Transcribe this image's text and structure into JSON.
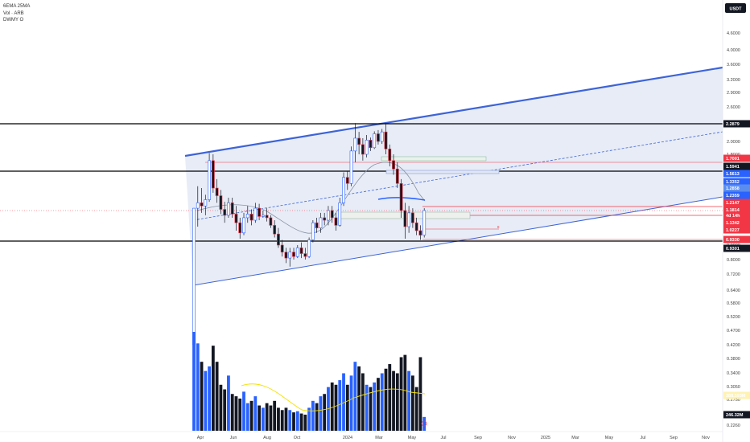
{
  "legend": {
    "line1": "6EMA 25MA",
    "line2": "Vol · ARB",
    "line3": "DWMY O"
  },
  "currency_button": "USDT",
  "price_axis": {
    "ticks": [
      "4.6000",
      "4.0000",
      "3.6000",
      "3.2000",
      "2.9000",
      "2.6000",
      "2.0000",
      "1.8000",
      "1.0200",
      "0.9000",
      "0.8000",
      "0.7200",
      "0.6400",
      "0.5800",
      "0.5200",
      "0.4700",
      "0.4200",
      "0.3800",
      "0.3400",
      "0.3050",
      "0.2750",
      "0.2260"
    ]
  },
  "price_tags": [
    {
      "label": "2.2879",
      "color": "#131722"
    },
    {
      "label": "1.7001",
      "color": "#f23645"
    },
    {
      "label": "1.5941",
      "color": "#131722"
    },
    {
      "label": "1.5613",
      "color": "#2962ff"
    },
    {
      "label": "1.3352",
      "color": "#2962ff"
    },
    {
      "label": "1.2858",
      "color": "#5b8def"
    },
    {
      "label": "1.2359",
      "color": "#2962ff"
    },
    {
      "label": "1.2147",
      "color": "#f23645"
    },
    {
      "label": "1.1814",
      "color": "#f23645"
    },
    {
      "label": "4d 14h",
      "color": "#f23645"
    },
    {
      "label": "1.1342",
      "color": "#f23645"
    },
    {
      "label": "1.0227",
      "color": "#f23645"
    },
    {
      "label": "0.9330",
      "color": "#f23645"
    },
    {
      "label": "0.9301",
      "color": "#131722"
    },
    {
      "label": "388.593M",
      "color": "#fff2b3"
    },
    {
      "label": "246.32M",
      "color": "#131722"
    }
  ],
  "time_axis": {
    "labels": [
      "Apr",
      "Jun",
      "Aug",
      "Oct",
      "2024",
      "Mar",
      "May",
      "Jul",
      "Sep",
      "Nov",
      "2025",
      "Mar",
      "May",
      "Jul",
      "Sep",
      "Nov"
    ]
  },
  "chart_data": {
    "type": "candlestick",
    "symbol": "ARB",
    "quote": "USDT",
    "candles": [
      {
        "o": 0.42,
        "h": 1.2,
        "l": 0.42,
        "c": 1.2
      },
      {
        "o": 1.2,
        "h": 1.42,
        "l": 1.05,
        "c": 1.25
      },
      {
        "o": 1.25,
        "h": 1.4,
        "l": 1.16,
        "c": 1.22
      },
      {
        "o": 1.22,
        "h": 1.33,
        "l": 1.14,
        "c": 1.28
      },
      {
        "o": 1.28,
        "h": 1.82,
        "l": 1.26,
        "c": 1.72
      },
      {
        "o": 1.72,
        "h": 1.8,
        "l": 1.35,
        "c": 1.4
      },
      {
        "o": 1.4,
        "h": 1.5,
        "l": 1.25,
        "c": 1.32
      },
      {
        "o": 1.32,
        "h": 1.38,
        "l": 1.15,
        "c": 1.19
      },
      {
        "o": 1.19,
        "h": 1.26,
        "l": 1.08,
        "c": 1.14
      },
      {
        "o": 1.14,
        "h": 1.3,
        "l": 1.12,
        "c": 1.25
      },
      {
        "o": 1.25,
        "h": 1.3,
        "l": 1.12,
        "c": 1.15
      },
      {
        "o": 1.15,
        "h": 1.22,
        "l": 1.02,
        "c": 1.08
      },
      {
        "o": 1.08,
        "h": 1.12,
        "l": 0.95,
        "c": 1.0
      },
      {
        "o": 1.0,
        "h": 1.16,
        "l": 0.98,
        "c": 1.12
      },
      {
        "o": 1.12,
        "h": 1.22,
        "l": 1.08,
        "c": 1.15
      },
      {
        "o": 1.15,
        "h": 1.19,
        "l": 1.06,
        "c": 1.1
      },
      {
        "o": 1.1,
        "h": 1.25,
        "l": 1.08,
        "c": 1.2
      },
      {
        "o": 1.2,
        "h": 1.24,
        "l": 1.1,
        "c": 1.13
      },
      {
        "o": 1.13,
        "h": 1.18,
        "l": 1.12,
        "c": 1.14
      },
      {
        "o": 1.14,
        "h": 1.2,
        "l": 1.09,
        "c": 1.12
      },
      {
        "o": 1.12,
        "h": 1.14,
        "l": 1.04,
        "c": 1.06
      },
      {
        "o": 1.06,
        "h": 1.1,
        "l": 0.96,
        "c": 0.99
      },
      {
        "o": 0.99,
        "h": 1.04,
        "l": 0.88,
        "c": 0.9
      },
      {
        "o": 0.9,
        "h": 0.94,
        "l": 0.82,
        "c": 0.85
      },
      {
        "o": 0.85,
        "h": 0.88,
        "l": 0.78,
        "c": 0.81
      },
      {
        "o": 0.81,
        "h": 0.88,
        "l": 0.76,
        "c": 0.85
      },
      {
        "o": 0.85,
        "h": 0.88,
        "l": 0.8,
        "c": 0.82
      },
      {
        "o": 0.82,
        "h": 0.9,
        "l": 0.81,
        "c": 0.88
      },
      {
        "o": 0.88,
        "h": 0.92,
        "l": 0.81,
        "c": 0.84
      },
      {
        "o": 0.84,
        "h": 0.88,
        "l": 0.8,
        "c": 0.82
      },
      {
        "o": 0.82,
        "h": 0.96,
        "l": 0.81,
        "c": 0.94
      },
      {
        "o": 0.94,
        "h": 1.1,
        "l": 0.92,
        "c": 1.08
      },
      {
        "o": 1.08,
        "h": 1.12,
        "l": 1.0,
        "c": 1.04
      },
      {
        "o": 1.04,
        "h": 1.16,
        "l": 1.0,
        "c": 1.12
      },
      {
        "o": 1.12,
        "h": 1.16,
        "l": 1.06,
        "c": 1.1
      },
      {
        "o": 1.1,
        "h": 1.22,
        "l": 1.06,
        "c": 1.18
      },
      {
        "o": 1.18,
        "h": 1.22,
        "l": 1.08,
        "c": 1.12
      },
      {
        "o": 1.12,
        "h": 1.16,
        "l": 1.02,
        "c": 1.06
      },
      {
        "o": 1.06,
        "h": 1.3,
        "l": 1.05,
        "c": 1.25
      },
      {
        "o": 1.25,
        "h": 1.58,
        "l": 1.22,
        "c": 1.52
      },
      {
        "o": 1.52,
        "h": 1.6,
        "l": 1.38,
        "c": 1.45
      },
      {
        "o": 1.45,
        "h": 1.92,
        "l": 1.42,
        "c": 1.85
      },
      {
        "o": 1.85,
        "h": 2.3,
        "l": 1.7,
        "c": 2.05
      },
      {
        "o": 2.05,
        "h": 2.15,
        "l": 1.8,
        "c": 1.95
      },
      {
        "o": 1.95,
        "h": 2.05,
        "l": 1.72,
        "c": 1.8
      },
      {
        "o": 1.8,
        "h": 2.1,
        "l": 1.76,
        "c": 2.02
      },
      {
        "o": 2.02,
        "h": 2.06,
        "l": 1.85,
        "c": 1.9
      },
      {
        "o": 1.9,
        "h": 2.16,
        "l": 1.88,
        "c": 2.12
      },
      {
        "o": 2.12,
        "h": 2.18,
        "l": 1.95,
        "c": 2.0
      },
      {
        "o": 2.0,
        "h": 2.2,
        "l": 1.96,
        "c": 2.15
      },
      {
        "o": 2.15,
        "h": 2.3,
        "l": 1.8,
        "c": 1.88
      },
      {
        "o": 1.88,
        "h": 1.95,
        "l": 1.65,
        "c": 1.72
      },
      {
        "o": 1.72,
        "h": 1.8,
        "l": 1.55,
        "c": 1.62
      },
      {
        "o": 1.62,
        "h": 1.7,
        "l": 1.4,
        "c": 1.45
      },
      {
        "o": 1.45,
        "h": 1.5,
        "l": 1.12,
        "c": 1.18
      },
      {
        "o": 1.18,
        "h": 1.25,
        "l": 0.95,
        "c": 1.05
      },
      {
        "o": 1.05,
        "h": 1.22,
        "l": 1.0,
        "c": 1.16
      },
      {
        "o": 1.16,
        "h": 1.2,
        "l": 1.04,
        "c": 1.08
      },
      {
        "o": 1.08,
        "h": 1.12,
        "l": 0.98,
        "c": 1.02
      },
      {
        "o": 1.02,
        "h": 1.06,
        "l": 0.94,
        "c": 0.98
      },
      {
        "o": 0.98,
        "h": 1.2,
        "l": 0.96,
        "c": 1.18
      }
    ],
    "volumes": [
      430,
      380,
      300,
      260,
      280,
      370,
      300,
      200,
      180,
      240,
      160,
      150,
      140,
      170,
      120,
      130,
      150,
      110,
      100,
      120,
      110,
      130,
      100,
      90,
      100,
      90,
      80,
      85,
      75,
      70,
      100,
      130,
      120,
      150,
      160,
      190,
      210,
      200,
      220,
      250,
      200,
      240,
      300,
      280,
      250,
      200,
      190,
      210,
      230,
      250,
      270,
      290,
      260,
      250,
      320,
      330,
      260,
      240,
      190,
      320,
      60
    ]
  }
}
